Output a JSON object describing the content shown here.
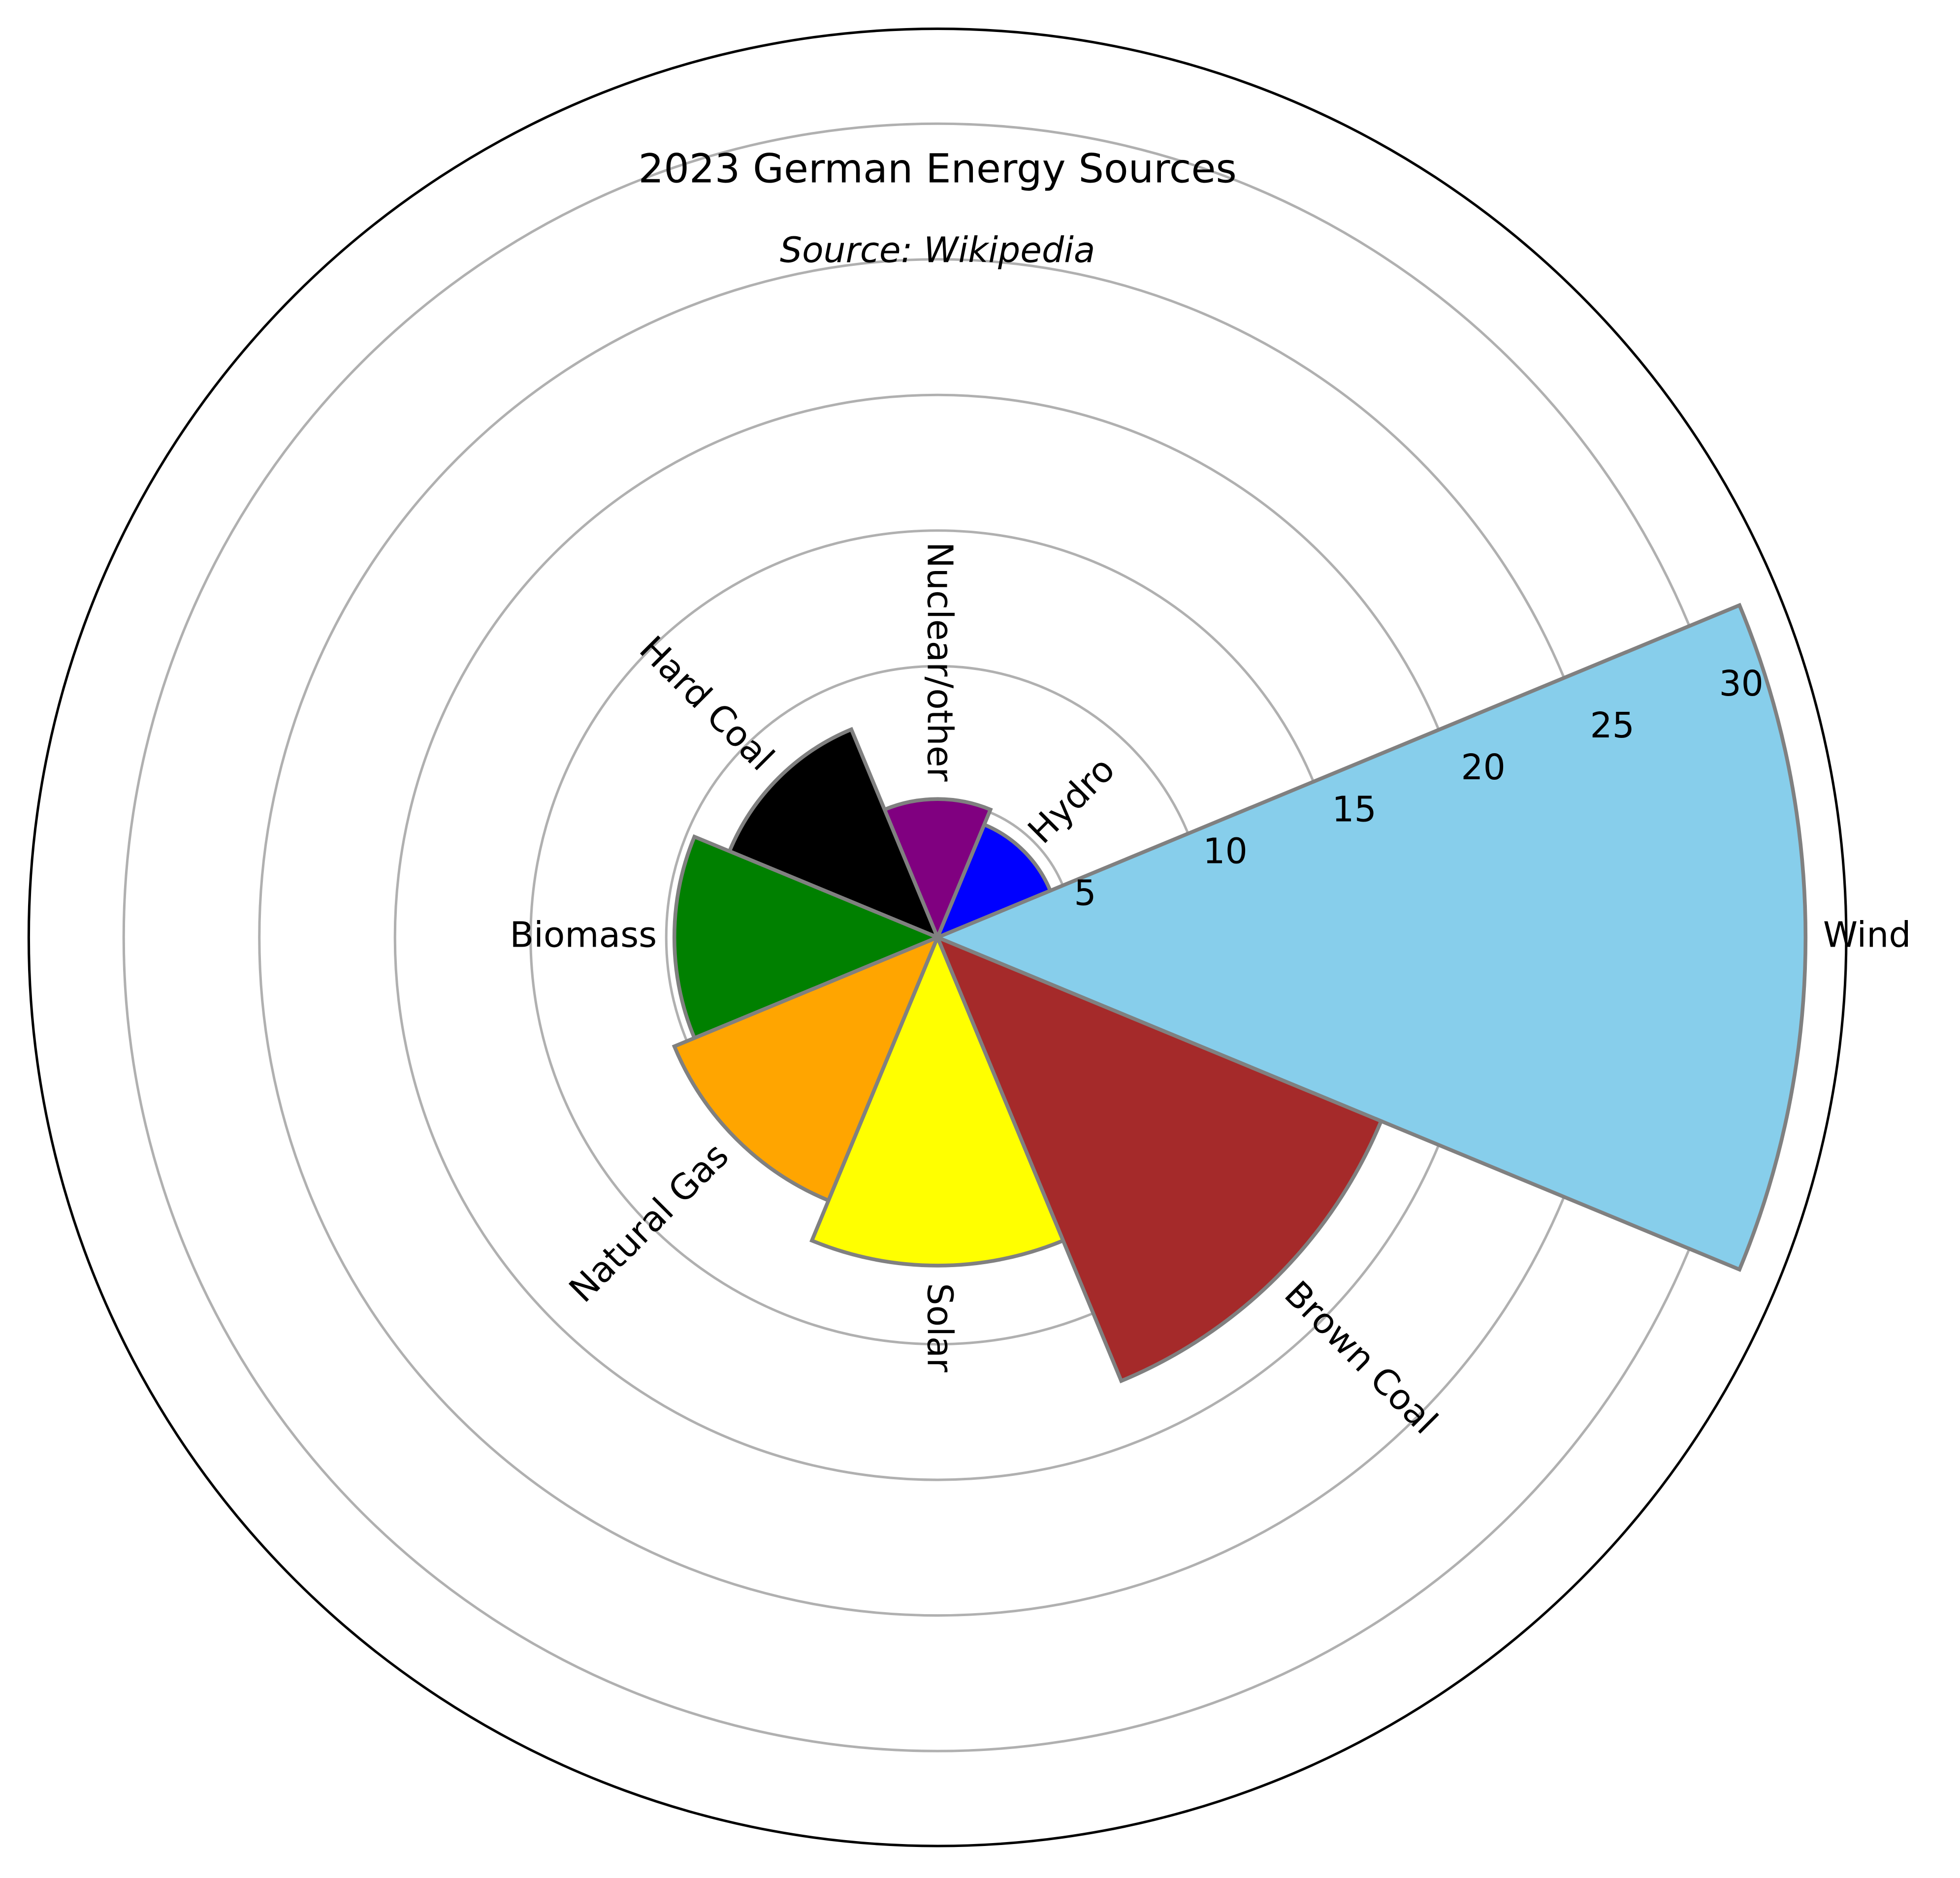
{
  "chart_data": {
    "type": "polar-bar",
    "title": "2023 German Energy Sources",
    "subtitle": "Source: Wikipedia",
    "categories": [
      "Wind",
      "Hydro",
      "Nuclear/other",
      "Hard Coal",
      "Biomass",
      "Natural Gas",
      "Solar",
      "Brown Coal"
    ],
    "values": [
      32,
      4.5,
      5.1,
      8.3,
      9.7,
      10.5,
      12.1,
      17.7
    ],
    "colors": [
      "#87ceeb",
      "#0000ff",
      "#800080",
      "#000000",
      "#008000",
      "#ffa500",
      "#ffff00",
      "#a52a2a"
    ],
    "edgecolor": "#808080",
    "rlim": [
      0,
      33.5
    ],
    "rticks": [
      5,
      10,
      15,
      20,
      25,
      30
    ],
    "grid": true
  }
}
